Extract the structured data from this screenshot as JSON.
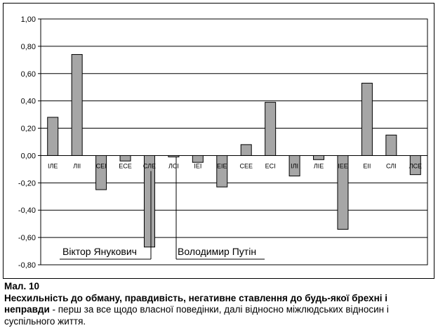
{
  "chart_data": {
    "type": "bar",
    "categories": [
      "ІЛЕ",
      "ЛІІ",
      "СЕІ",
      "ЕСЕ",
      "СЛЕ",
      "ЛСІ",
      "ІЕІ",
      "ЕІЕ",
      "СЕЕ",
      "ЕСІ",
      "ІЛІ",
      "ЛІЕ",
      "ІЕЕ",
      "ЕІІ",
      "СЛІ",
      "ЛСЕ"
    ],
    "values": [
      0.28,
      0.74,
      -0.25,
      -0.04,
      -0.67,
      -0.01,
      -0.05,
      -0.23,
      0.08,
      0.39,
      -0.15,
      -0.03,
      -0.54,
      0.53,
      0.15,
      -0.14
    ],
    "ylim": [
      -0.8,
      1.0
    ],
    "yticks": [
      "1,00",
      "0,80",
      "0,60",
      "0,40",
      "0,20",
      "0,00",
      "-0,20",
      "-0,40",
      "-0,60",
      "-0,80"
    ],
    "ytick_values": [
      1.0,
      0.8,
      0.6,
      0.4,
      0.2,
      0.0,
      -0.2,
      -0.4,
      -0.6,
      -0.8
    ],
    "grid": true,
    "bar_color": "#a6a6a6",
    "annotations": [
      {
        "text": "Віктор Янукович",
        "category": "СЛЕ"
      },
      {
        "text": "Володимир Путін",
        "category": "ЛСІ"
      }
    ]
  },
  "caption": {
    "figure": "Мал. 10",
    "bold_text": "Несхильність до обману, правдивість, негативне ставлення до будь-якої брехні і неправди",
    "rest_text": " - перш за все щодо власної поведінки, далі відносно міжлюдських відносин і суспільного життя."
  }
}
